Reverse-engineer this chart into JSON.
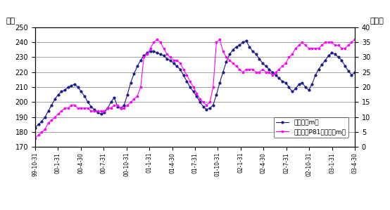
{
  "ylabel_left": "水位",
  "ylabel_right": "水位差",
  "ylim_left": [
    170,
    250
  ],
  "ylim_right": [
    0,
    40
  ],
  "yticks_left": [
    170,
    180,
    190,
    200,
    210,
    220,
    230,
    240,
    250
  ],
  "yticks_right": [
    0,
    5,
    10,
    15,
    20,
    25,
    30,
    35,
    40
  ],
  "xtick_labels": [
    "99-10-31",
    "00-1-31",
    "00-4-30",
    "00-7-31",
    "00-10-31",
    "01-1-31",
    "01-4-30",
    "01-7-31",
    "01-10-31",
    "02-1-31",
    "02-4-30",
    "02-7-31",
    "02-10-31",
    "03-1-31",
    "03-4-30"
  ],
  "line1_label": "库水位（m）",
  "line2_label": "库水位与P81水位差（m）",
  "line1_color": "#1a1a8c",
  "line2_color": "#FF00FF",
  "background_color": "#FFFFFF",
  "water_level": [
    183,
    185,
    187,
    190,
    194,
    198,
    202,
    205,
    207,
    208,
    210,
    211,
    212,
    210,
    207,
    204,
    200,
    197,
    195,
    193,
    192,
    193,
    196,
    200,
    203,
    197,
    196,
    198,
    205,
    213,
    219,
    224,
    228,
    231,
    233,
    234,
    234,
    233,
    232,
    231,
    229,
    228,
    226,
    224,
    222,
    218,
    214,
    210,
    207,
    204,
    200,
    197,
    195,
    196,
    198,
    205,
    213,
    220,
    227,
    232,
    235,
    237,
    238,
    240,
    241,
    237,
    234,
    232,
    229,
    226,
    224,
    222,
    220,
    218,
    216,
    214,
    213,
    210,
    207,
    209,
    212,
    213,
    210,
    208,
    212,
    218,
    222,
    225,
    228,
    231,
    233,
    232,
    230,
    228,
    224,
    221,
    218,
    220
  ],
  "water_diff": [
    3,
    4,
    5,
    6,
    8,
    9,
    10,
    11,
    12,
    13,
    13,
    14,
    14,
    13,
    13,
    13,
    13,
    12,
    12,
    12,
    12,
    12,
    13,
    13,
    14,
    14,
    13,
    13,
    14,
    15,
    16,
    17,
    20,
    30,
    31,
    33,
    35,
    36,
    35,
    33,
    31,
    30,
    29,
    29,
    28,
    26,
    24,
    22,
    20,
    18,
    16,
    15,
    14,
    15,
    20,
    35,
    36,
    32,
    30,
    29,
    28,
    27,
    26,
    25,
    26,
    26,
    26,
    25,
    25,
    26,
    25,
    25,
    24,
    25,
    26,
    27,
    28,
    30,
    31,
    33,
    34,
    35,
    34,
    33,
    33,
    33,
    33,
    34,
    35,
    35,
    35,
    34,
    34,
    33,
    33,
    34,
    35,
    36
  ]
}
